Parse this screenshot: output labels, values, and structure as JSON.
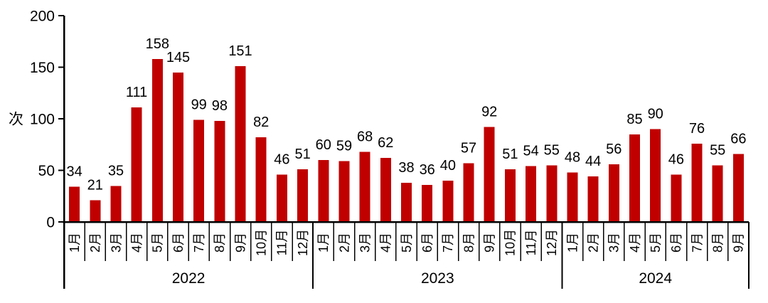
{
  "chart_data": {
    "type": "bar",
    "title": "",
    "ylabel": "次",
    "xlabel": "",
    "ylim": [
      0,
      200
    ],
    "yticks": [
      0,
      50,
      100,
      150,
      200
    ],
    "grid": false,
    "legend_position": "none",
    "bar_color": "#c00000",
    "axis_color": "#000000",
    "groups": [
      {
        "label": "2022",
        "categories": [
          "1月",
          "2月",
          "3月",
          "4月",
          "5月",
          "6月",
          "7月",
          "8月",
          "9月",
          "10月",
          "11月",
          "12月"
        ],
        "values": [
          34,
          21,
          35,
          111,
          158,
          145,
          99,
          98,
          151,
          82,
          46,
          51
        ]
      },
      {
        "label": "2023",
        "categories": [
          "1月",
          "2月",
          "3月",
          "4月",
          "5月",
          "6月",
          "7月",
          "8月",
          "9月",
          "10月",
          "11月",
          "12月"
        ],
        "values": [
          60,
          59,
          68,
          62,
          38,
          36,
          40,
          57,
          92,
          51,
          54,
          55
        ]
      },
      {
        "label": "2024",
        "categories": [
          "1月",
          "2月",
          "3月",
          "4月",
          "5月",
          "6月",
          "7月",
          "8月",
          "9月"
        ],
        "values": [
          48,
          44,
          56,
          85,
          90,
          46,
          76,
          55,
          66
        ]
      }
    ]
  }
}
